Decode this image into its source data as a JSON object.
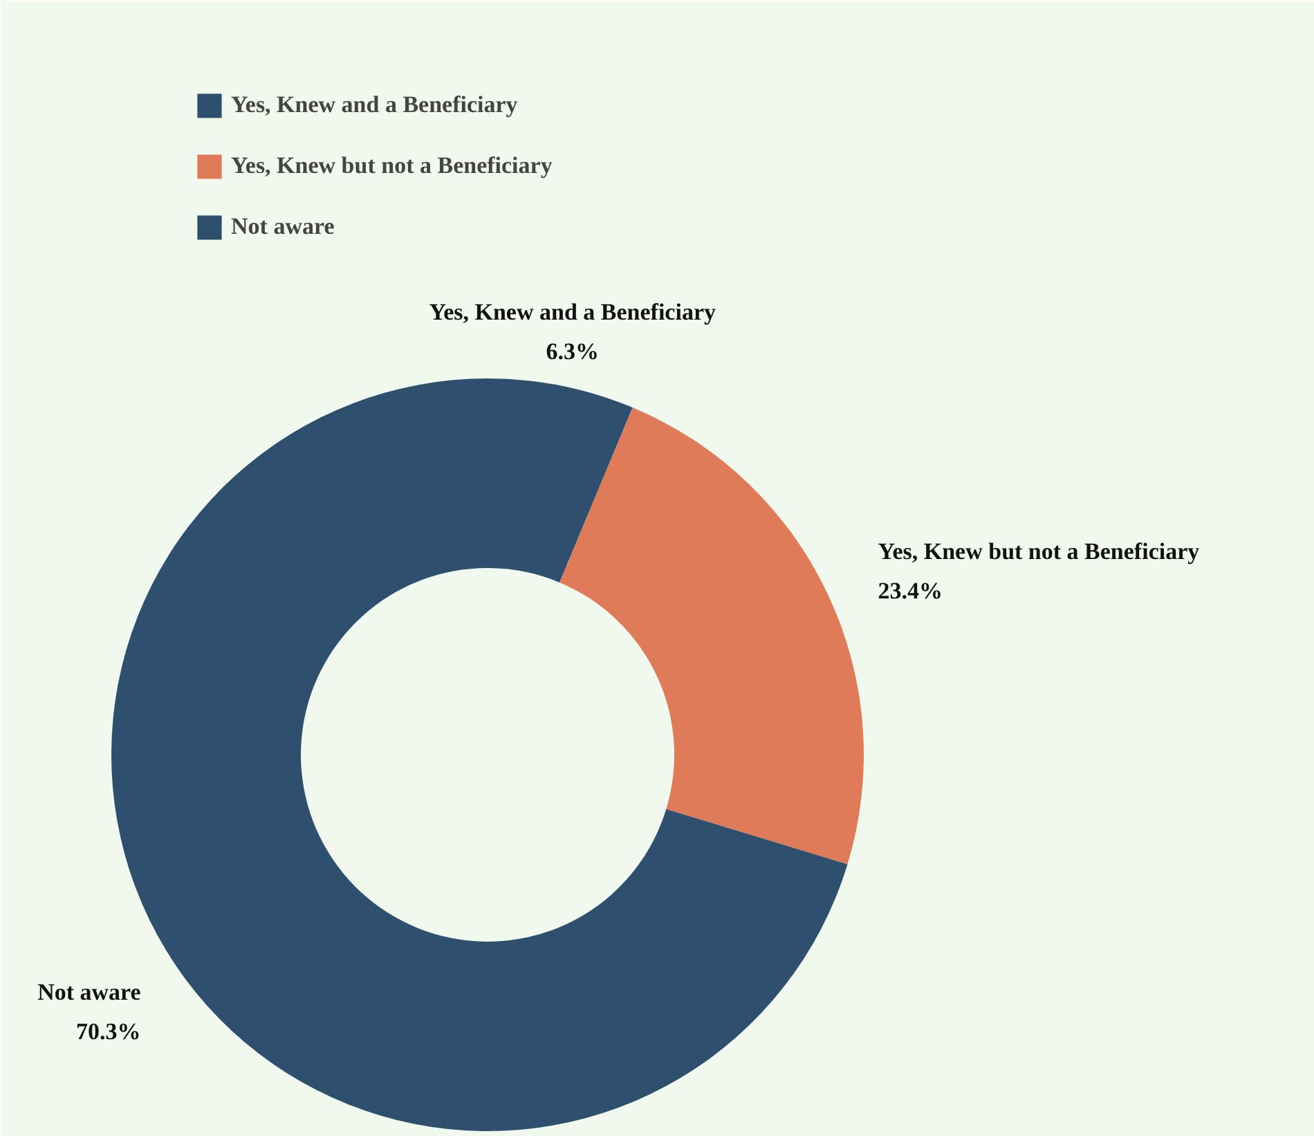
{
  "chart_data": {
    "type": "donut",
    "categories": [
      "Yes, Knew and a Beneficiary",
      "Yes, Knew but not a Beneficiary",
      "Not aware"
    ],
    "values": [
      6.3,
      23.4,
      70.3
    ],
    "colors": [
      "#2e4f6e",
      "#e07b5a",
      "#2e4f6e"
    ],
    "value_labels": [
      "6.3%",
      "23.4%",
      "70.3%"
    ],
    "legend": "top left"
  }
}
